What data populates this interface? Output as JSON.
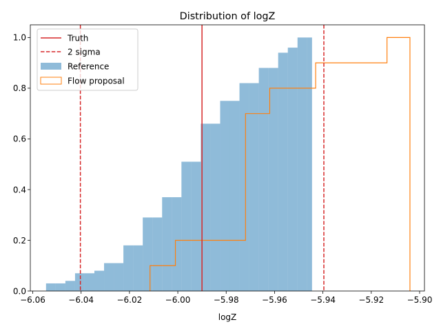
{
  "chart_data": {
    "type": "histogram",
    "title": "Distribution of logZ",
    "xlabel": "logZ",
    "ylabel": "",
    "xlim": [
      -6.061,
      -5.898
    ],
    "ylim": [
      0,
      1.05
    ],
    "xticks": [
      -6.06,
      -6.04,
      -6.02,
      -6.0,
      -5.98,
      -5.96,
      -5.94,
      -5.92,
      -5.9
    ],
    "xtick_labels": [
      "−6.06",
      "−6.04",
      "−6.02",
      "−6.00",
      "−5.98",
      "−5.96",
      "−5.94",
      "−5.92",
      "−5.90"
    ],
    "yticks": [
      0.0,
      0.2,
      0.4,
      0.6,
      0.8,
      1.0
    ],
    "ytick_labels": [
      "0.0",
      "0.2",
      "0.4",
      "0.6",
      "0.8",
      "1.0"
    ],
    "legend_position": "top-left",
    "grid": false,
    "series": [
      {
        "name": "Truth",
        "kind": "vline",
        "x": -5.99,
        "color": "#d62728",
        "style": "solid"
      },
      {
        "name": "2 sigma",
        "kind": "vlines",
        "x": [
          -6.0403,
          -5.9396
        ],
        "color": "#d62728",
        "style": "dashed"
      },
      {
        "name": "Reference",
        "kind": "hist-filled",
        "color": "#1f77b4",
        "alpha": 0.5,
        "bin_edges": [
          -6.0545,
          -6.0505,
          -6.0465,
          -6.0425,
          -6.0385,
          -6.0345,
          -6.0305,
          -6.0265,
          -6.0225,
          -6.0185,
          -6.0145,
          -6.0105,
          -6.0065,
          -6.0025,
          -5.9985,
          -5.9945,
          -5.9905,
          -5.9865,
          -5.9825,
          -5.9785,
          -5.9745,
          -5.9705,
          -5.9665,
          -5.9625,
          -5.9585,
          -5.9545,
          -5.9505,
          -5.9465,
          -5.9445
        ],
        "values": [
          0.03,
          0.03,
          0.04,
          0.07,
          0.07,
          0.08,
          0.11,
          0.11,
          0.18,
          0.18,
          0.29,
          0.29,
          0.37,
          0.37,
          0.51,
          0.51,
          0.66,
          0.66,
          0.75,
          0.75,
          0.82,
          0.82,
          0.88,
          0.88,
          0.94,
          0.96,
          1.0,
          1.0
        ]
      },
      {
        "name": "Flow proposal",
        "kind": "hist-step",
        "color": "#ff7f0e",
        "bin_edges": [
          -6.0115,
          -6.001,
          -5.972,
          -5.962,
          -5.943,
          -5.9135,
          -5.904
        ],
        "values": [
          0.1,
          0.2,
          0.7,
          0.8,
          0.9,
          1.0
        ]
      }
    ]
  }
}
